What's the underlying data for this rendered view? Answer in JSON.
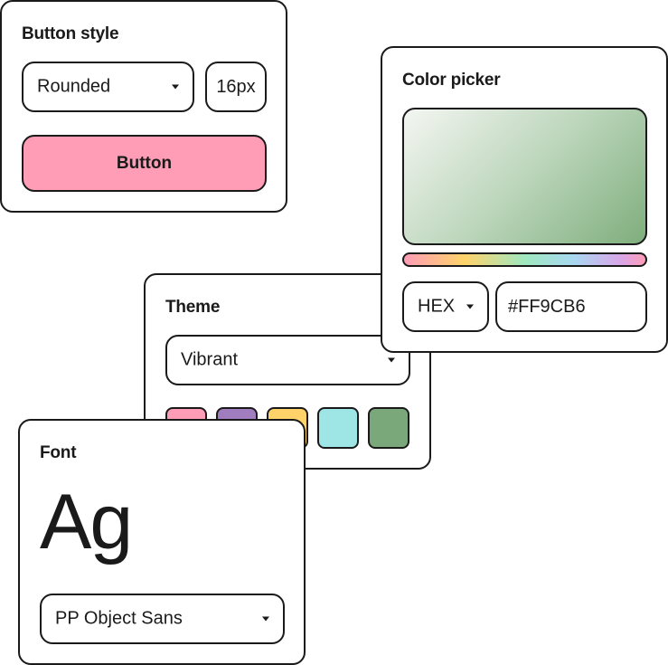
{
  "button_style": {
    "title": "Button style",
    "shape": "Rounded",
    "size": "16px",
    "preview_label": "Button",
    "preview_color": "#FF9CB6"
  },
  "theme": {
    "title": "Theme",
    "selected": "Vibrant",
    "swatches": [
      {
        "name": "pink",
        "color": "#FF9CB6"
      },
      {
        "name": "purple",
        "color": "#A07DBE"
      },
      {
        "name": "yellow",
        "color": "#FFD36A"
      },
      {
        "name": "cyan",
        "color": "#9EE6E6"
      },
      {
        "name": "green",
        "color": "#7BA87A"
      }
    ]
  },
  "color_picker": {
    "title": "Color picker",
    "format": "HEX",
    "value": "#FF9CB6"
  },
  "font": {
    "title": "Font",
    "preview": "Ag",
    "family": "PP Object Sans"
  }
}
